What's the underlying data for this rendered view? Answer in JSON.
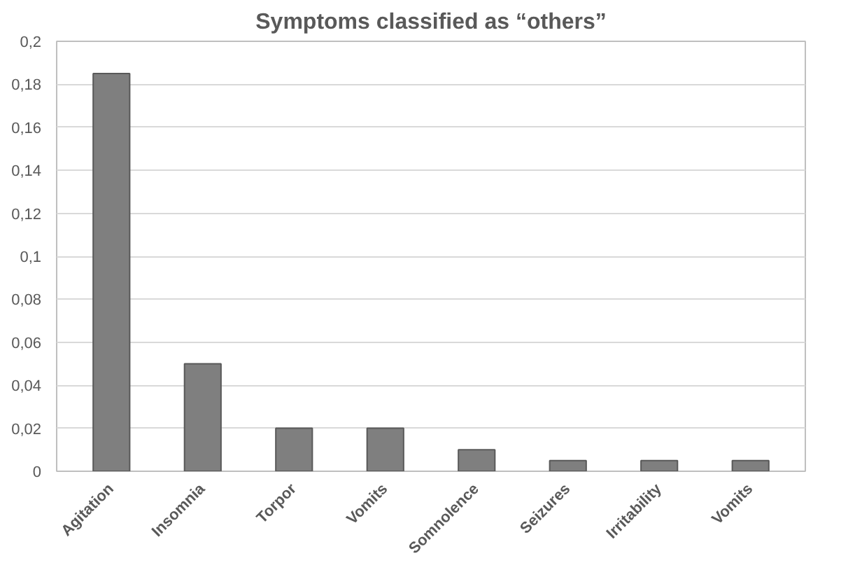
{
  "chart_data": {
    "type": "bar",
    "title": "Symptoms classified as “others”",
    "categories": [
      "Agitation",
      "Insomnia",
      "Torpor",
      "Vomits",
      "Somnolence",
      "Seizures",
      "Irritability",
      "Vomits"
    ],
    "values": [
      0.185,
      0.05,
      0.02,
      0.02,
      0.01,
      0.005,
      0.005,
      0.005
    ],
    "color": "#7f7f7f",
    "ylim": [
      0,
      0.2
    ],
    "yticks": [
      0,
      {
        "value": 0.02,
        "label": "0,02"
      },
      {
        "value": 0.04,
        "label": "0,04"
      },
      {
        "value": 0.06,
        "label": "0,06"
      },
      {
        "value": 0.08,
        "label": "0,08"
      },
      {
        "value": 0.1,
        "label": "0,1"
      },
      {
        "value": 0.12,
        "label": "0,12"
      },
      {
        "value": 0.14,
        "label": "0,14"
      },
      {
        "value": 0.16,
        "label": "0,16"
      },
      {
        "value": 0.18,
        "label": "0,18"
      },
      {
        "value": 0.2,
        "label": "0,2"
      }
    ],
    "grid": "y"
  }
}
